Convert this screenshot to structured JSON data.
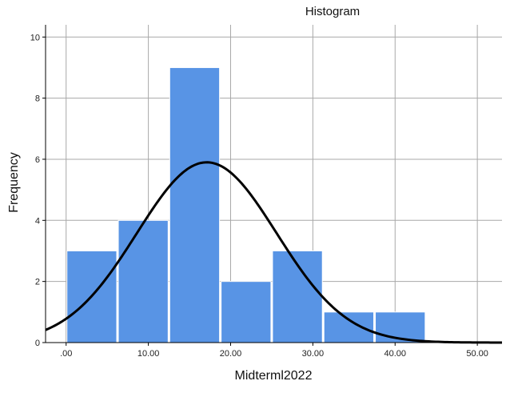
{
  "chart_data": {
    "type": "bar",
    "title": "Histogram",
    "xlabel": "Midterml2022",
    "ylabel": "Frequency",
    "xlim": [
      -2.5,
      53
    ],
    "ylim": [
      0,
      10.4
    ],
    "x_ticks": [
      0,
      10,
      20,
      30,
      40,
      50
    ],
    "x_tick_labels": [
      ".00",
      "10.00",
      "20.00",
      "30.00",
      "40.00",
      "50.00"
    ],
    "y_ticks": [
      0,
      2,
      4,
      6,
      8,
      10
    ],
    "y_tick_labels": [
      "0",
      "2",
      "4",
      "6",
      "8",
      "10"
    ],
    "grid": true,
    "bins": [
      {
        "from": 0,
        "to": 6.25,
        "count": 3
      },
      {
        "from": 6.25,
        "to": 12.5,
        "count": 4
      },
      {
        "from": 12.5,
        "to": 18.75,
        "count": 9
      },
      {
        "from": 18.75,
        "to": 25,
        "count": 2
      },
      {
        "from": 25,
        "to": 31.25,
        "count": 3
      },
      {
        "from": 31.25,
        "to": 37.5,
        "count": 1
      },
      {
        "from": 37.5,
        "to": 43.75,
        "count": 1
      }
    ],
    "normal_curve": {
      "mean": 17.1,
      "sd": 8.5,
      "peak": 5.9
    },
    "colors": {
      "bar": "#5894e5",
      "curve": "#000000",
      "grid": "#a8a8a8"
    }
  }
}
